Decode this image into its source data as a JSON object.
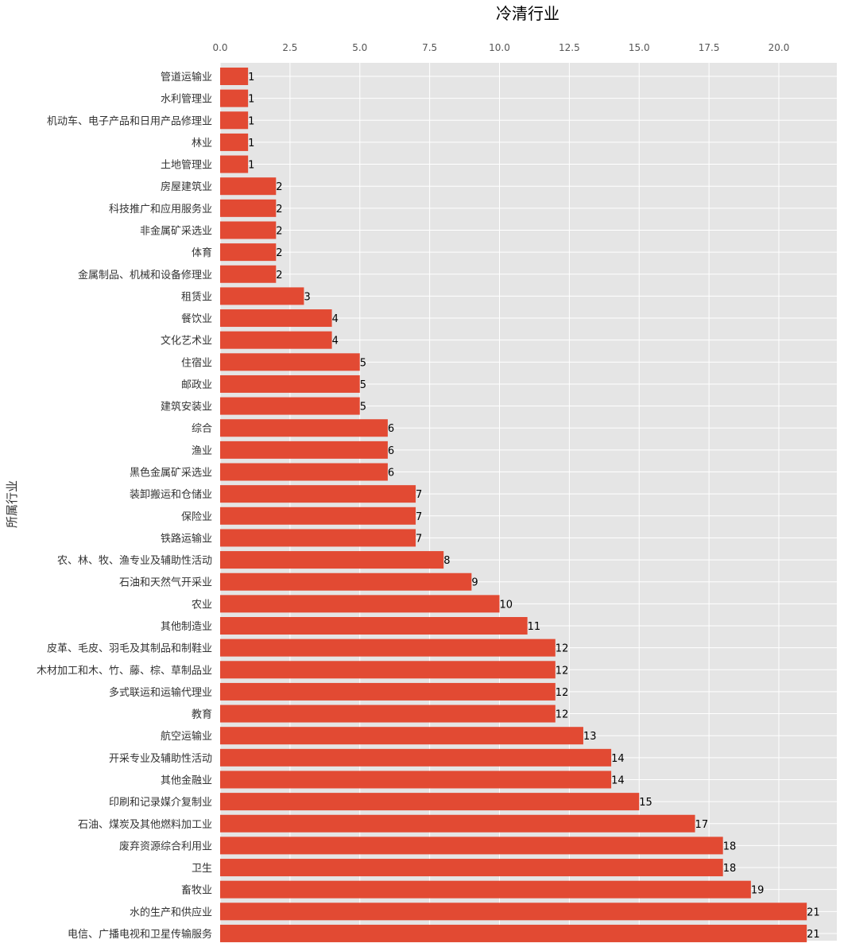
{
  "chart_data": {
    "type": "bar",
    "orientation": "horizontal",
    "title": "冷清行业",
    "xlabel": "",
    "ylabel": "所属行业",
    "xlim": [
      0,
      21.5
    ],
    "x_ticks": [
      "0.0",
      "2.5",
      "5.0",
      "7.5",
      "10.0",
      "12.5",
      "15.0",
      "17.5",
      "20.0"
    ],
    "x_tick_values": [
      0,
      2.5,
      5,
      7.5,
      10,
      12.5,
      15,
      17.5,
      20
    ],
    "x_axis_position": "top",
    "grid": true,
    "bar_color": "#e24a33",
    "background_color": "#e5e5e5",
    "categories": [
      "管道运输业",
      "水利管理业",
      "机动车、电子产品和日用产品修理业",
      "林业",
      "土地管理业",
      "房屋建筑业",
      "科技推广和应用服务业",
      "非金属矿采选业",
      "体育",
      "金属制品、机械和设备修理业",
      "租赁业",
      "餐饮业",
      "文化艺术业",
      "住宿业",
      "邮政业",
      "建筑安装业",
      "综合",
      "渔业",
      "黑色金属矿采选业",
      "装卸搬运和仓储业",
      "保险业",
      "铁路运输业",
      "农、林、牧、渔专业及辅助性活动",
      "石油和天然气开采业",
      "农业",
      "其他制造业",
      "皮革、毛皮、羽毛及其制品和制鞋业",
      "木材加工和木、竹、藤、棕、草制品业",
      "多式联运和运输代理业",
      "教育",
      "航空运输业",
      "开采专业及辅助性活动",
      "其他金融业",
      "印刷和记录媒介复制业",
      "石油、煤炭及其他燃料加工业",
      "废弃资源综合利用业",
      "卫生",
      "畜牧业",
      "水的生产和供应业",
      "电信、广播电视和卫星传输服务"
    ],
    "values": [
      1,
      1,
      1,
      1,
      1,
      2,
      2,
      2,
      2,
      2,
      3,
      4,
      4,
      5,
      5,
      5,
      6,
      6,
      6,
      7,
      7,
      7,
      8,
      9,
      10,
      11,
      12,
      12,
      12,
      12,
      13,
      14,
      14,
      15,
      17,
      18,
      18,
      19,
      21,
      21
    ]
  }
}
